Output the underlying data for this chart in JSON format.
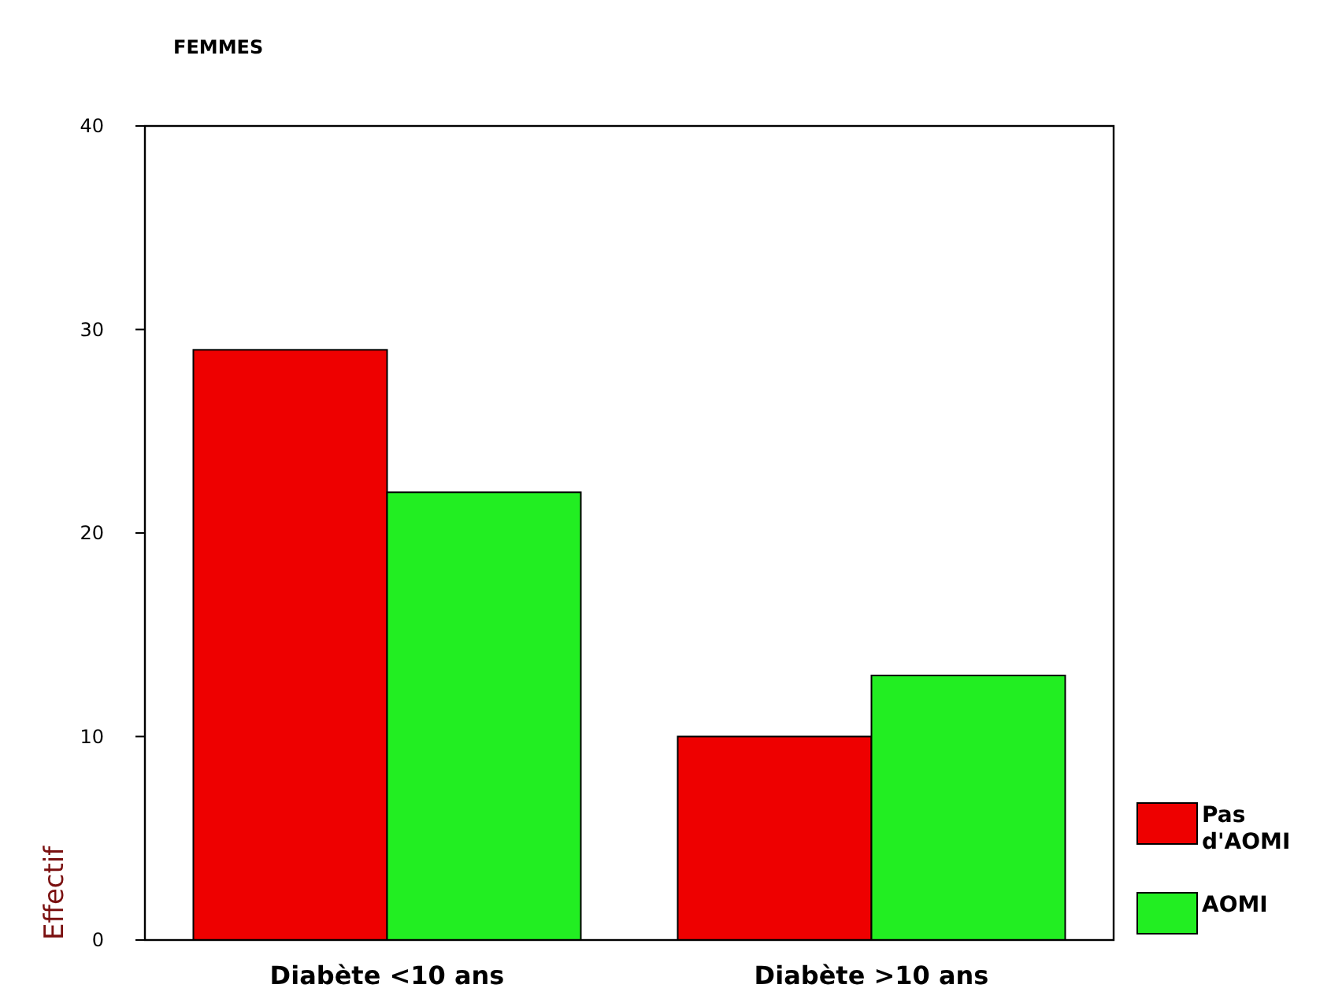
{
  "chart_data": {
    "type": "bar",
    "title": "FEMMES",
    "ylabel": "Effectif",
    "categories": [
      "Diabète <10 ans",
      "Diabète >10 ans"
    ],
    "series": [
      {
        "name": "Pas d'AOMI",
        "color": "#ee0000",
        "values": [
          29,
          10
        ]
      },
      {
        "name": "AOMI",
        "color": "#22ee22",
        "values": [
          22,
          13
        ]
      }
    ],
    "ylim": [
      0,
      40
    ],
    "yticks": [
      0,
      10,
      20,
      30,
      40
    ],
    "grid": false,
    "legend": "bottom right"
  }
}
